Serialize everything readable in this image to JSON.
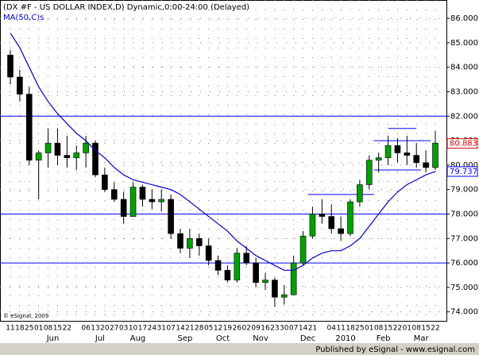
{
  "chart_data": {
    "type": "candlestick",
    "title": "(DX #F - US DOLLAR INDEX,D) Dynamic,0:00-24:00 (Delayed)",
    "indicator": "MA(50,C)s",
    "copyright": "© eSignal, 2009",
    "footer": "Published by eSignal - www.esignal.com",
    "categories": [
      "11",
      "18",
      "25",
      "01",
      "08",
      "15",
      "22",
      null,
      "06",
      "13",
      "20",
      "27",
      "03",
      "10",
      "17",
      "24",
      "31",
      "07",
      "14",
      "21",
      "28",
      "05",
      "12",
      "19",
      "26",
      "02",
      "09",
      "16",
      "23",
      "30",
      "07",
      "14",
      "21",
      null,
      "04",
      "11",
      "18",
      "25",
      "01",
      "08",
      "15",
      "22",
      "01",
      "08",
      "15",
      "22"
    ],
    "months": [
      {
        "name": "Jun",
        "week": 3
      },
      {
        "name": "Jul",
        "week": 8
      },
      {
        "name": "Aug",
        "week": 12
      },
      {
        "name": "Sep",
        "week": 17
      },
      {
        "name": "Oct",
        "week": 21
      },
      {
        "name": "Nov",
        "week": 25
      },
      {
        "name": "Dec",
        "week": 30
      },
      {
        "name": "2010",
        "week": 34
      },
      {
        "name": "Feb",
        "week": 38
      },
      {
        "name": "Mar",
        "week": 42
      }
    ],
    "open": [
      84.5,
      83.6,
      82.9,
      80.2,
      80.5,
      80.9,
      80.4,
      80.3,
      80.5,
      80.9,
      79.6,
      79.0,
      78.6,
      77.9,
      79.1,
      78.6,
      78.5,
      78.6,
      77.2,
      76.6,
      77.0,
      76.7,
      76.1,
      75.7,
      75.3,
      76.4,
      76.0,
      75.2,
      75.3,
      74.6,
      74.7,
      76.0,
      77.1,
      78.0,
      77.9,
      77.4,
      77.2,
      78.5,
      79.2,
      80.2,
      80.3,
      80.8,
      80.5,
      80.4,
      80.1,
      79.9
    ],
    "high": [
      84.7,
      83.9,
      83.2,
      80.6,
      81.5,
      81.5,
      81.2,
      80.8,
      81.2,
      81.0,
      79.9,
      79.3,
      78.9,
      79.3,
      79.2,
      79.0,
      79.0,
      78.8,
      77.4,
      77.4,
      77.2,
      77.0,
      76.3,
      75.9,
      76.6,
      76.7,
      76.2,
      75.6,
      75.4,
      75.1,
      76.3,
      77.3,
      78.3,
      78.6,
      78.4,
      77.9,
      78.6,
      79.4,
      80.4,
      80.5,
      81.2,
      81.1,
      81.2,
      80.9,
      80.6,
      81.4
    ],
    "low": [
      83.3,
      82.6,
      80.0,
      78.6,
      79.9,
      80.0,
      79.9,
      79.8,
      79.9,
      79.5,
      78.9,
      78.5,
      77.6,
      77.9,
      78.3,
      78.2,
      78.1,
      77.0,
      76.4,
      76.2,
      76.3,
      75.9,
      75.5,
      75.2,
      75.2,
      75.9,
      75.0,
      74.9,
      74.2,
      74.3,
      74.7,
      75.9,
      77.0,
      77.6,
      77.2,
      76.9,
      77.1,
      78.3,
      79.0,
      79.7,
      80.0,
      80.1,
      80.0,
      79.9,
      79.7,
      79.8
    ],
    "close": [
      83.6,
      82.9,
      80.2,
      80.5,
      80.9,
      80.4,
      80.3,
      80.5,
      80.9,
      79.6,
      79.0,
      78.6,
      77.9,
      79.1,
      78.6,
      78.5,
      78.6,
      77.2,
      76.6,
      77.0,
      76.7,
      76.1,
      75.7,
      75.3,
      76.4,
      76.0,
      75.2,
      75.3,
      74.6,
      74.7,
      76.0,
      77.1,
      78.0,
      77.9,
      77.4,
      77.2,
      78.5,
      79.2,
      80.2,
      80.3,
      80.8,
      80.5,
      80.4,
      80.1,
      79.9,
      80.9
    ],
    "ma": [
      85.4,
      84.8,
      84.0,
      83.2,
      82.6,
      82.1,
      81.7,
      81.3,
      81.0,
      80.6,
      80.3,
      79.9,
      79.6,
      79.4,
      79.3,
      79.2,
      79.1,
      79.0,
      78.8,
      78.5,
      78.2,
      77.9,
      77.6,
      77.3,
      76.9,
      76.6,
      76.3,
      76.1,
      75.9,
      75.7,
      75.7,
      75.9,
      76.2,
      76.4,
      76.5,
      76.5,
      76.7,
      77.0,
      77.5,
      78.0,
      78.5,
      78.9,
      79.2,
      79.4,
      79.6,
      79.74
    ],
    "up_color": "#00a000",
    "down_color": "#000000",
    "ma_color": "#0000cc",
    "line_color": "#0000ff",
    "hlines": [
      82,
      78,
      76
    ],
    "levels": [
      {
        "value": 81.5,
        "from": 40,
        "to": 43
      },
      {
        "value": 81.0,
        "from": 38.5,
        "to": 44.5
      },
      {
        "value": 79.8,
        "from": 38.5,
        "to": 43.5
      },
      {
        "value": 78.8,
        "from": 31.5,
        "to": 38.5
      }
    ],
    "last_labels": [
      {
        "value": 80.883,
        "color": "#e00000"
      },
      {
        "value": 79.737,
        "color": "#0000ff"
      }
    ],
    "ylim": [
      73.6,
      86.75
    ],
    "yticks": [
      {
        "value": 74,
        "label": "74.000"
      },
      {
        "value": 75,
        "label": "75.000"
      },
      {
        "value": 76,
        "label": "76.000"
      },
      {
        "value": 77,
        "label": "77.000"
      },
      {
        "value": 78,
        "label": "78.000"
      },
      {
        "value": 79,
        "label": "79.000"
      },
      {
        "value": 80,
        "label": "80.000"
      },
      {
        "value": 81,
        "label": "81.000"
      },
      {
        "value": 82,
        "label": "82.000"
      },
      {
        "value": 83,
        "label": "83.000"
      },
      {
        "value": 84,
        "label": "84.000"
      },
      {
        "value": 85,
        "label": "85.000"
      },
      {
        "value": 86,
        "label": "86.000"
      }
    ],
    "grid": true
  }
}
